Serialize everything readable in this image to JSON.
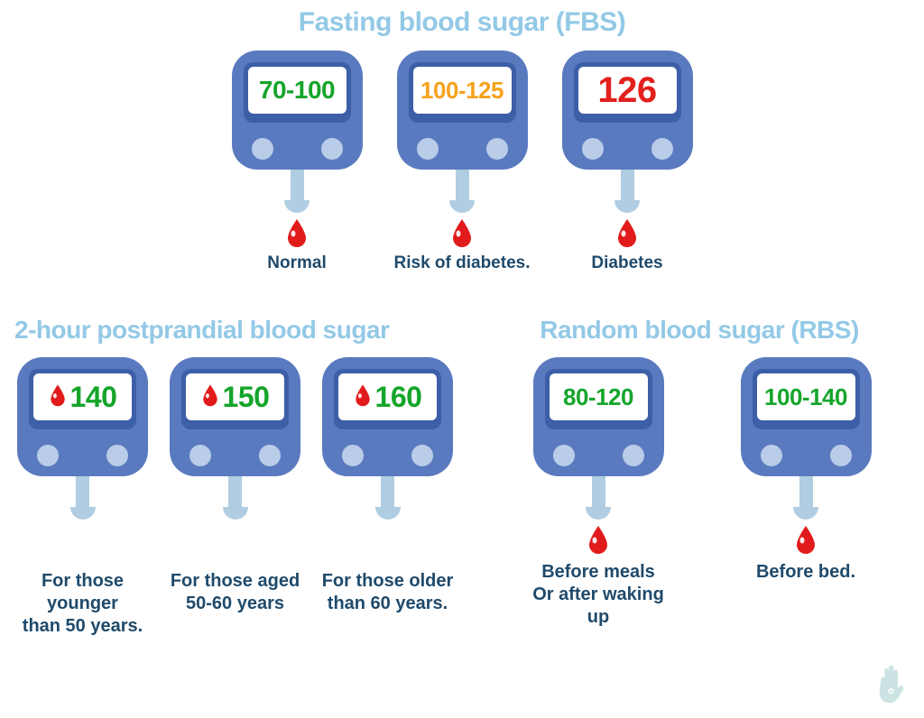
{
  "style": {
    "background_color": "#ffffff",
    "title_color": "#93c9e6",
    "caption_color": "#1f4a6b",
    "meter_body_color": "#5a7abf",
    "meter_screen_border_color": "#3d5fa7",
    "meter_button_color": "#b9cce8",
    "meter_neck_color": "#b0cde2",
    "blood_drop_color": "#e11b1b",
    "blood_highlight_color": "#ffffff",
    "value_green": "#15a52a",
    "value_orange": "#f6a21c",
    "value_red": "#e2201d",
    "watermark_color": "#b6d8d6"
  },
  "sections": {
    "fbs": {
      "title": "Fasting blood sugar (FBS)",
      "title_fontsize": 30,
      "items": [
        {
          "value": "70-100",
          "value_color": "#15a52a",
          "value_fontsize": 28,
          "drop_in_screen": false,
          "drop_below": true,
          "caption": "Normal"
        },
        {
          "value": "100-125",
          "value_color": "#f6a21c",
          "value_fontsize": 26,
          "drop_in_screen": false,
          "drop_below": true,
          "caption": "Risk of diabetes."
        },
        {
          "value": "126",
          "value_color": "#e2201d",
          "value_fontsize": 40,
          "drop_in_screen": false,
          "drop_below": true,
          "caption": "Diabetes"
        }
      ],
      "caption_fontsize": 19
    },
    "postprandial": {
      "title": "2-hour postprandial blood sugar",
      "title_fontsize": 28,
      "items": [
        {
          "value": "140",
          "value_color": "#15a52a",
          "value_fontsize": 32,
          "drop_in_screen": true,
          "drop_below": false,
          "caption": "For those younger\nthan 50 years."
        },
        {
          "value": "150",
          "value_color": "#15a52a",
          "value_fontsize": 32,
          "drop_in_screen": true,
          "drop_below": false,
          "caption": "For those aged\n50-60 years"
        },
        {
          "value": "160",
          "value_color": "#15a52a",
          "value_fontsize": 32,
          "drop_in_screen": true,
          "drop_below": false,
          "caption": "For those older\nthan 60 years."
        }
      ],
      "caption_fontsize": 20
    },
    "rbs": {
      "title": "Random blood sugar (RBS)",
      "title_fontsize": 28,
      "items": [
        {
          "value": "80-120",
          "value_color": "#15a52a",
          "value_fontsize": 26,
          "drop_in_screen": false,
          "drop_below": true,
          "caption": "Before meals\nOr after waking up"
        },
        {
          "value": "100-140",
          "value_color": "#15a52a",
          "value_fontsize": 26,
          "drop_in_screen": false,
          "drop_below": true,
          "caption": "Before bed."
        }
      ],
      "caption_fontsize": 20
    }
  }
}
